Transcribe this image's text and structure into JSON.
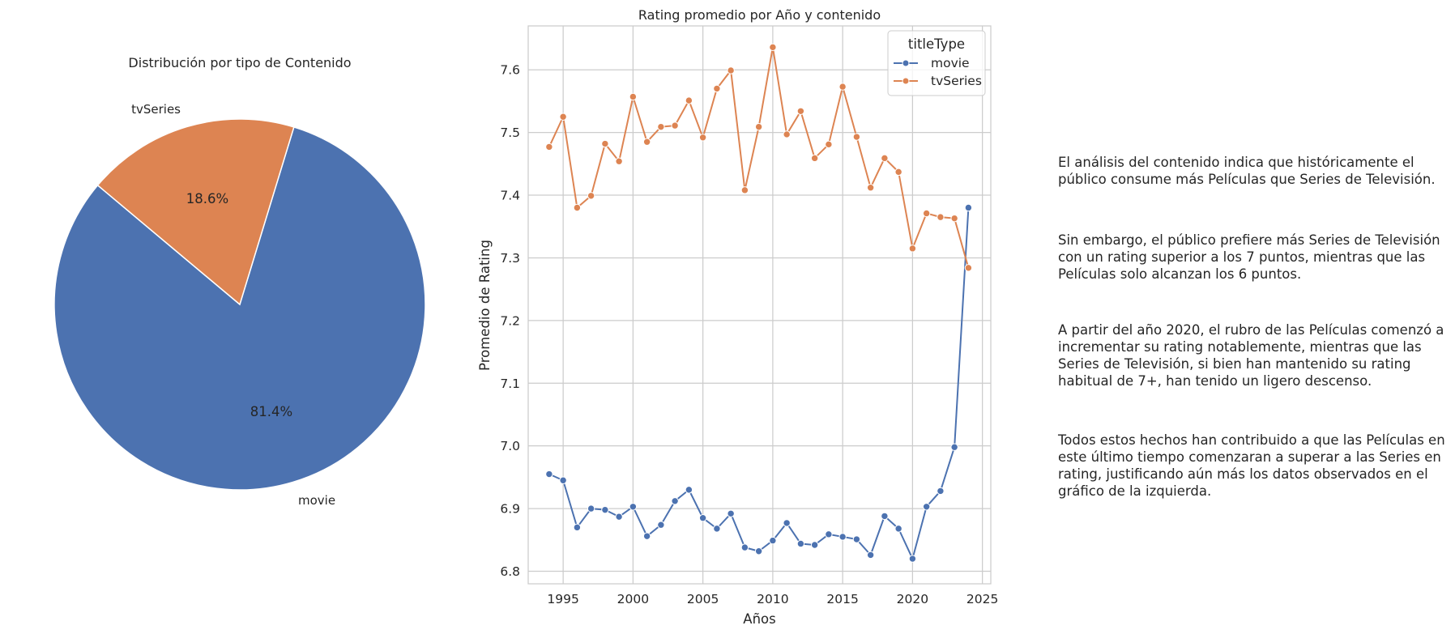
{
  "chart_data": [
    {
      "type": "pie",
      "title": "Distribución por tipo de Contenido",
      "slices": [
        {
          "label": "movie",
          "value": 81.4,
          "pct_label": "81.4%",
          "color": "#4c72b0"
        },
        {
          "label": "tvSeries",
          "value": 18.6,
          "pct_label": "18.6%",
          "color": "#dd8452"
        }
      ]
    },
    {
      "type": "line",
      "title": "Rating promedio por Año y contenido",
      "xlabel": "Años",
      "ylabel": "Promedio de Rating",
      "xlim": [
        1992.5,
        2025.6
      ],
      "ylim": [
        6.78,
        7.67
      ],
      "xticks": [
        1995,
        2000,
        2005,
        2010,
        2015,
        2020,
        2025
      ],
      "yticks": [
        6.8,
        6.9,
        7.0,
        7.1,
        7.2,
        7.3,
        7.4,
        7.5,
        7.6
      ],
      "grid": true,
      "legend": {
        "title": "titleType",
        "position": "top-right"
      },
      "x": [
        1994,
        1995,
        1996,
        1997,
        1998,
        1999,
        2000,
        2001,
        2002,
        2003,
        2004,
        2005,
        2006,
        2007,
        2008,
        2009,
        2010,
        2011,
        2012,
        2013,
        2014,
        2015,
        2016,
        2017,
        2018,
        2019,
        2020,
        2021,
        2022,
        2023,
        2024
      ],
      "series": [
        {
          "name": "movie",
          "color": "#4c72b0",
          "values": [
            6.955,
            6.945,
            6.87,
            6.9,
            6.898,
            6.887,
            6.903,
            6.856,
            6.874,
            6.912,
            6.93,
            6.885,
            6.868,
            6.892,
            6.838,
            6.832,
            6.849,
            6.877,
            6.844,
            6.842,
            6.859,
            6.855,
            6.851,
            6.826,
            6.888,
            6.868,
            6.82,
            6.903,
            6.928,
            6.998,
            7.38
          ]
        },
        {
          "name": "tvSeries",
          "color": "#dd8452",
          "values": [
            7.477,
            7.525,
            7.38,
            7.399,
            7.482,
            7.454,
            7.557,
            7.485,
            7.509,
            7.511,
            7.551,
            7.492,
            7.57,
            7.599,
            7.408,
            7.509,
            7.636,
            7.497,
            7.534,
            7.459,
            7.481,
            7.573,
            7.493,
            7.412,
            7.459,
            7.437,
            7.315,
            7.371,
            7.365,
            7.363,
            7.284
          ]
        }
      ]
    }
  ],
  "commentary": [
    "El análisis del contenido indica que históricamente el\npúblico consume más Películas que Series de Televisión.",
    "Sin embargo, el público prefiere más Series de Televisión\ncon un rating superior a los 7 puntos, mientras que las\nPelículas solo alcanzan los 6 puntos.",
    "A partir del año 2020, el rubro de las Películas comenzó a\nincrementar su rating notablemente, mientras que las\nSeries de Televisión, si bien han mantenido su rating\nhabitual de 7+, han tenido un ligero descenso.",
    "Todos estos hechos han contribuido a que las Películas en\neste último tiempo comenzaran a superar a las Series en\nrating, justificando aún más los datos observados en el\ngráfico de la izquierda."
  ]
}
